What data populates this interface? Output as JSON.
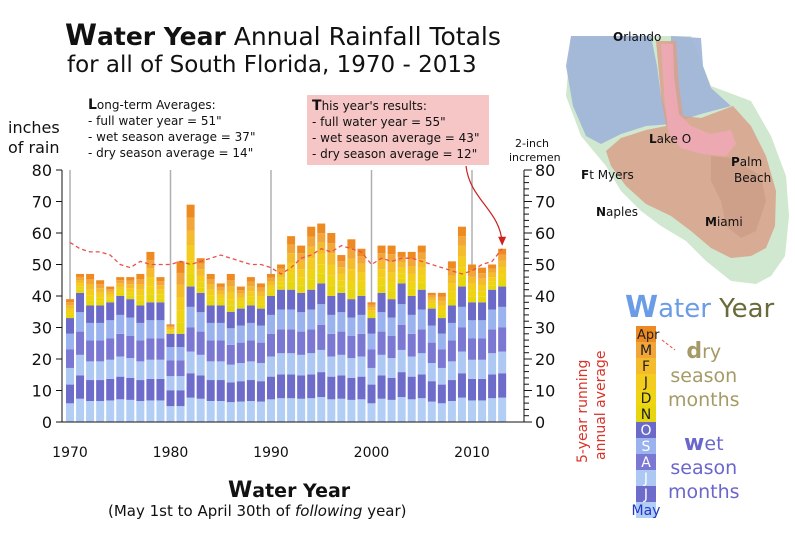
{
  "title": {
    "line1_cap": "W",
    "line1_bold": "ater Year",
    "line1_rest": " Annual Rainfall Totals",
    "line2": "for all of South Florida, 1970 - 2013"
  },
  "y_axis": {
    "label_line1": "inches",
    "label_line2": "of rain"
  },
  "right_axis": {
    "label_line1": "2-inch",
    "label_line2": "increments"
  },
  "long_term": {
    "cap": "L",
    "heading": "ong-term Averages:",
    "lines": [
      "- full water year = 51\"",
      "- wet season average = 37\"",
      "- dry season average = 14\""
    ]
  },
  "this_year": {
    "cap": "T",
    "heading": "his year's results:",
    "lines": [
      "- full water year = 55\"",
      "- wet season average = 43\"",
      "- dry season average = 12\""
    ]
  },
  "x_axis": {
    "cap": "W",
    "label": "ater Year",
    "sub_a": "(May 1st to April 30th of ",
    "sub_italic": "following",
    "sub_b": " year)"
  },
  "map": {
    "labels": [
      {
        "cap": "O",
        "rest": "rlando"
      },
      {
        "cap": "L",
        "rest": "ake O"
      },
      {
        "cap": "F",
        "rest": "t Myers"
      },
      {
        "cap": "P",
        "rest": "alm"
      },
      {
        "cap": "",
        "rest": "Beach"
      },
      {
        "cap": "N",
        "rest": "aples"
      },
      {
        "cap": "M",
        "rest": "iami"
      }
    ]
  },
  "legend": {
    "title_cap": "W",
    "title_mid": "ater",
    "title_end": " Year",
    "running_line1": "5-year running",
    "running_line2": "annual average",
    "months": [
      {
        "label": "Apr",
        "color": "#ee8a22"
      },
      {
        "label": "M",
        "color": "#f2a63a"
      },
      {
        "label": "F",
        "color": "#f4bb2c"
      },
      {
        "label": "J",
        "color": "#f4cc1e"
      },
      {
        "label": "D",
        "color": "#edd514"
      },
      {
        "label": "N",
        "color": "#e6d610"
      },
      {
        "label": "O",
        "color": "#6b6ac8"
      },
      {
        "label": "S",
        "color": "#9ab3ee"
      },
      {
        "label": "A",
        "color": "#7a78d2"
      },
      {
        "label": "J",
        "color": "#aec8f4"
      },
      {
        "label": "J",
        "color": "#6e6cca"
      },
      {
        "label": "May",
        "color": "#b2cef5"
      }
    ],
    "dry_cap": "d",
    "dry_rest": "ry",
    "dry_line2": "season",
    "dry_line3": "months",
    "wet_cap": "w",
    "wet_rest": "et",
    "wet_line2": "season",
    "wet_line3": "months"
  },
  "chart_data": {
    "type": "bar",
    "stacked": true,
    "x_ticks": [
      "1970",
      "1980",
      "1990",
      "2000",
      "2010"
    ],
    "y_ticks": [
      "0",
      "10",
      "20",
      "30",
      "40",
      "50",
      "60",
      "70",
      "80"
    ],
    "ylim": [
      0,
      80
    ],
    "years": [
      1970,
      1971,
      1972,
      1973,
      1974,
      1975,
      1976,
      1977,
      1978,
      1979,
      1980,
      1981,
      1982,
      1983,
      1984,
      1985,
      1986,
      1987,
      1988,
      1989,
      1990,
      1991,
      1992,
      1993,
      1994,
      1995,
      1996,
      1997,
      1998,
      1999,
      2000,
      2001,
      2002,
      2003,
      2004,
      2005,
      2006,
      2007,
      2008,
      2009,
      2010,
      2011,
      2012,
      2013
    ],
    "wet_season": [
      33,
      41,
      37,
      37,
      38,
      40,
      39,
      37,
      38,
      38,
      28,
      28,
      43,
      41,
      37,
      37,
      35,
      36,
      37,
      36,
      40,
      42,
      42,
      41,
      42,
      44,
      40,
      41,
      39,
      40,
      33,
      41,
      39,
      44,
      40,
      42,
      36,
      33,
      37,
      43,
      38,
      38,
      42,
      43
    ],
    "dry_season": [
      6,
      6,
      10,
      8,
      5,
      6,
      7,
      10,
      16,
      8,
      3,
      23,
      26,
      11,
      10,
      7,
      12,
      7,
      9,
      8,
      7,
      8,
      17,
      15,
      20,
      19,
      20,
      12,
      19,
      15,
      5,
      15,
      17,
      10,
      14,
      14,
      5,
      8,
      14,
      19,
      12,
      11,
      8,
      12
    ],
    "running_average": [
      57,
      55,
      54,
      54,
      53,
      50,
      49,
      51,
      50,
      50,
      50,
      51,
      50,
      51,
      52,
      53,
      52,
      51,
      50,
      50,
      49,
      47,
      49,
      52,
      53,
      55,
      54,
      56,
      55,
      54,
      50,
      52,
      51,
      52,
      52,
      51,
      50,
      49,
      48,
      47,
      48,
      50,
      51,
      55
    ],
    "grid": false
  }
}
